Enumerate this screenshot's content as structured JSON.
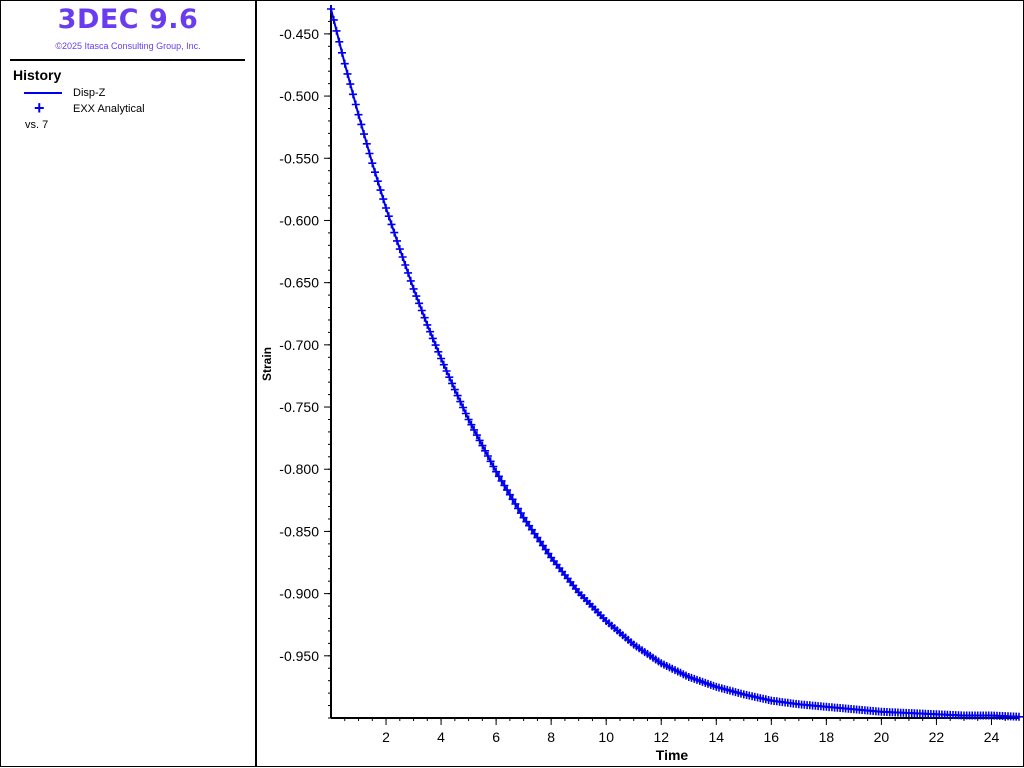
{
  "header": {
    "app_title": "3DEC 9.6",
    "copyright": "©2025 Itasca Consulting Group, Inc."
  },
  "legend": {
    "title": "History",
    "items": [
      {
        "label": "Disp-Z",
        "marker": "line",
        "color": "#0000ee"
      },
      {
        "label": "EXX Analytical",
        "marker": "plus",
        "color": "#0000ee"
      }
    ],
    "vs_label": "vs. 7"
  },
  "chart_data": {
    "type": "line",
    "xlabel": "Time",
    "ylabel": "Strain",
    "xlim": [
      0,
      25
    ],
    "ylim": [
      -1.0,
      -0.43
    ],
    "x_ticks": [
      2,
      4,
      6,
      8,
      10,
      12,
      14,
      16,
      18,
      20,
      22,
      24
    ],
    "y_ticks": [
      -0.45,
      -0.5,
      -0.55,
      -0.6,
      -0.65,
      -0.7,
      -0.75,
      -0.8,
      -0.85,
      -0.9,
      -0.95
    ],
    "y_tick_labels": [
      "-0.450",
      "-0.500",
      "-0.550",
      "-0.600",
      "-0.650",
      "-0.700",
      "-0.750",
      "-0.800",
      "-0.850",
      "-0.900",
      "-0.950"
    ],
    "series": [
      {
        "name": "Disp-Z",
        "style": "line",
        "color": "#0000ee",
        "x": [
          0,
          0.5,
          1,
          1.5,
          2,
          2.5,
          3,
          3.5,
          4,
          4.5,
          5,
          6,
          7,
          8,
          9,
          10,
          11,
          12,
          13,
          14,
          15,
          16,
          17,
          18,
          19,
          20,
          21,
          22,
          23,
          24,
          25
        ],
        "y": [
          -0.43,
          -0.474,
          -0.515,
          -0.554,
          -0.59,
          -0.623,
          -0.655,
          -0.684,
          -0.711,
          -0.736,
          -0.76,
          -0.802,
          -0.839,
          -0.871,
          -0.899,
          -0.922,
          -0.941,
          -0.956,
          -0.967,
          -0.975,
          -0.981,
          -0.986,
          -0.989,
          -0.991,
          -0.993,
          -0.995,
          -0.996,
          -0.997,
          -0.998,
          -0.998,
          -0.999
        ]
      },
      {
        "name": "EXX Analytical",
        "style": "plus",
        "color": "#0000ee",
        "x": [
          0,
          0.5,
          1,
          1.5,
          2,
          2.5,
          3,
          3.5,
          4,
          4.5,
          5,
          6,
          7,
          8,
          9,
          10,
          11,
          12,
          13,
          14,
          15,
          16,
          17,
          18,
          19,
          20,
          21,
          22,
          23,
          24,
          25
        ],
        "y": [
          -0.43,
          -0.474,
          -0.515,
          -0.554,
          -0.59,
          -0.623,
          -0.655,
          -0.684,
          -0.711,
          -0.736,
          -0.76,
          -0.802,
          -0.839,
          -0.871,
          -0.899,
          -0.922,
          -0.941,
          -0.956,
          -0.967,
          -0.975,
          -0.981,
          -0.986,
          -0.989,
          -0.991,
          -0.993,
          -0.995,
          -0.996,
          -0.997,
          -0.998,
          -0.998,
          -0.999
        ]
      }
    ]
  }
}
